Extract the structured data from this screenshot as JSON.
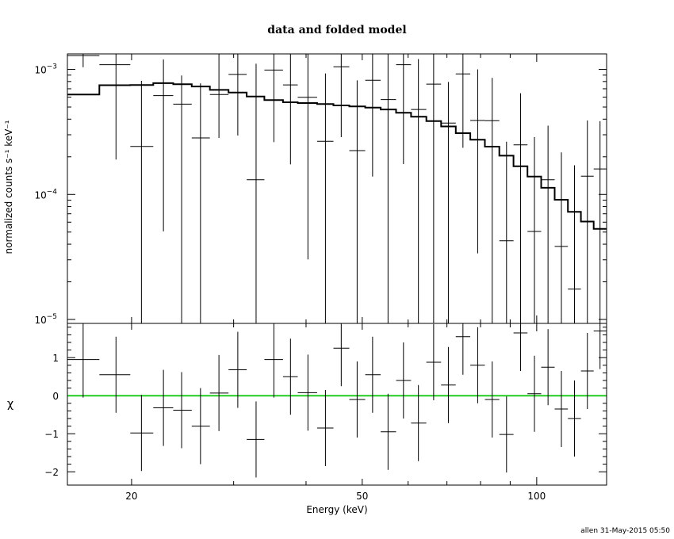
{
  "chart_data": {
    "title": "data and folded model",
    "footer": "allen 31-May-2015 05:50",
    "xlabel": "Energy (keV)",
    "x_scale": "log",
    "xlim": [
      15.5,
      132
    ],
    "x_ticks": [
      {
        "value": 20,
        "label": "20"
      },
      {
        "value": 50,
        "label": "50"
      },
      {
        "value": 100,
        "label": "100"
      }
    ],
    "panels": [
      {
        "type": "scatter",
        "ylabel": "normalized counts s⁻¹ keV⁻¹",
        "y_scale": "log",
        "ylim": [
          9.3e-06,
          0.00133
        ],
        "y_ticks": [
          {
            "value": 1e-05,
            "base": "10",
            "exp": "−5"
          },
          {
            "value": 0.0001,
            "base": "10",
            "exp": "−4"
          },
          {
            "value": 0.001,
            "base": "10",
            "exp": "−3"
          }
        ],
        "data": [
          {
            "x": 16.5,
            "xlo": 15.5,
            "xhi": 17.6,
            "y": 0.00129,
            "ylo": 0.00104,
            "yhi": 0.00133
          },
          {
            "x": 18.8,
            "xlo": 17.6,
            "xhi": 19.9,
            "y": 0.00109,
            "ylo": 0.00019,
            "yhi": 0.00133
          },
          {
            "x": 20.8,
            "xlo": 19.9,
            "xhi": 21.8,
            "y": 0.000242,
            "ylo": 9.3e-06,
            "yhi": 0.00081
          },
          {
            "x": 22.7,
            "xlo": 21.8,
            "xhi": 23.6,
            "y": 0.000617,
            "ylo": 5.07e-05,
            "yhi": 0.0012
          },
          {
            "x": 24.4,
            "xlo": 23.6,
            "xhi": 25.4,
            "y": 0.000527,
            "ylo": 9.3e-06,
            "yhi": 0.000894
          },
          {
            "x": 26.3,
            "xlo": 25.4,
            "xhi": 27.3,
            "y": 0.000283,
            "ylo": 9.3e-06,
            "yhi": 0.000773
          },
          {
            "x": 28.3,
            "xlo": 27.3,
            "xhi": 29.4,
            "y": 0.000629,
            "ylo": 0.000283,
            "yhi": 0.00133
          },
          {
            "x": 30.5,
            "xlo": 29.4,
            "xhi": 31.6,
            "y": 0.000911,
            "ylo": 0.000296,
            "yhi": 0.00133
          },
          {
            "x": 32.8,
            "xlo": 31.6,
            "xhi": 33.9,
            "y": 0.000131,
            "ylo": 9.3e-06,
            "yhi": 0.00111
          },
          {
            "x": 35.2,
            "xlo": 33.9,
            "xhi": 36.5,
            "y": 0.000987,
            "ylo": 0.000262,
            "yhi": 0.00133
          },
          {
            "x": 37.6,
            "xlo": 36.5,
            "xhi": 38.7,
            "y": 0.000751,
            "ylo": 0.000174,
            "yhi": 0.00133
          },
          {
            "x": 40.3,
            "xlo": 38.7,
            "xhi": 41.8,
            "y": 0.000598,
            "ylo": 3.02e-05,
            "yhi": 0.00133
          },
          {
            "x": 43.2,
            "xlo": 41.8,
            "xhi": 44.6,
            "y": 0.000266,
            "ylo": 9.3e-06,
            "yhi": 0.000929
          },
          {
            "x": 46.0,
            "xlo": 44.6,
            "xhi": 47.5,
            "y": 0.00105,
            "ylo": 0.000287,
            "yhi": 0.00133
          },
          {
            "x": 49.0,
            "xlo": 47.5,
            "xhi": 50.6,
            "y": 0.000224,
            "ylo": 9.3e-06,
            "yhi": 0.000817
          },
          {
            "x": 52.1,
            "xlo": 50.6,
            "xhi": 53.8,
            "y": 0.000818,
            "ylo": 0.000139,
            "yhi": 0.00133
          },
          {
            "x": 55.4,
            "xlo": 53.8,
            "xhi": 57.2,
            "y": 0.000574,
            "ylo": 9.3e-06,
            "yhi": 0.00133
          },
          {
            "x": 58.9,
            "xlo": 57.2,
            "xhi": 60.7,
            "y": 0.00109,
            "ylo": 0.000175,
            "yhi": 0.00133
          },
          {
            "x": 62.5,
            "xlo": 60.7,
            "xhi": 64.5,
            "y": 0.000478,
            "ylo": 9.3e-06,
            "yhi": 0.00121
          },
          {
            "x": 66.4,
            "xlo": 64.5,
            "xhi": 68.4,
            "y": 0.000762,
            "ylo": 9.3e-06,
            "yhi": 0.00133
          },
          {
            "x": 70.4,
            "xlo": 68.4,
            "xhi": 72.5,
            "y": 0.000372,
            "ylo": 9.3e-06,
            "yhi": 0.000793
          },
          {
            "x": 74.6,
            "xlo": 72.5,
            "xhi": 76.8,
            "y": 0.00092,
            "ylo": 0.000236,
            "yhi": 0.00133
          },
          {
            "x": 79.1,
            "xlo": 76.8,
            "xhi": 81.4,
            "y": 0.00039,
            "ylo": 3.38e-05,
            "yhi": 0.001
          },
          {
            "x": 83.8,
            "xlo": 81.4,
            "xhi": 86.2,
            "y": 0.000389,
            "ylo": 9.3e-06,
            "yhi": 0.000855
          },
          {
            "x": 88.7,
            "xlo": 86.2,
            "xhi": 91.2,
            "y": 4.26e-05,
            "ylo": 9.3e-06,
            "yhi": 0.000264
          },
          {
            "x": 93.8,
            "xlo": 91.2,
            "xhi": 96.4,
            "y": 0.000249,
            "ylo": 9.3e-06,
            "yhi": 0.000644
          },
          {
            "x": 99.1,
            "xlo": 96.4,
            "xhi": 101.8,
            "y": 5.06e-05,
            "ylo": 9.3e-06,
            "yhi": 0.000288
          },
          {
            "x": 104.6,
            "xlo": 101.8,
            "xhi": 107.4,
            "y": 0.000131,
            "ylo": 9.3e-06,
            "yhi": 0.000355
          },
          {
            "x": 110.3,
            "xlo": 107.4,
            "xhi": 113.2,
            "y": 3.84e-05,
            "ylo": 9.3e-06,
            "yhi": 0.000217
          },
          {
            "x": 116.2,
            "xlo": 113.2,
            "xhi": 119.2,
            "y": 1.75e-05,
            "ylo": 9.3e-06,
            "yhi": 0.000171
          },
          {
            "x": 122.3,
            "xlo": 119.2,
            "xhi": 125.4,
            "y": 0.00014,
            "ylo": 9.3e-06,
            "yhi": 0.00039
          },
          {
            "x": 128.6,
            "xlo": 125.4,
            "xhi": 132.0,
            "y": 0.00016,
            "ylo": 9.3e-06,
            "yhi": 0.000385
          }
        ],
        "model": {
          "name": "folded model",
          "edges": [
            15.5,
            17.6,
            19.9,
            21.8,
            23.6,
            25.4,
            27.3,
            29.4,
            31.6,
            33.9,
            36.5,
            38.7,
            41.8,
            44.6,
            47.5,
            50.6,
            53.8,
            57.2,
            60.7,
            64.5,
            68.4,
            72.5,
            76.8,
            81.4,
            86.2,
            91.2,
            96.4,
            101.8,
            107.4,
            113.2,
            119.2,
            125.4,
            132.0
          ],
          "values": [
            0.00063,
            0.000747,
            0.00075,
            0.000776,
            0.000762,
            0.00073,
            0.000686,
            0.000653,
            0.000607,
            0.000568,
            0.000546,
            0.000538,
            0.000528,
            0.000515,
            0.000505,
            0.000495,
            0.000478,
            0.00045,
            0.000418,
            0.000386,
            0.00035,
            0.000309,
            0.000274,
            0.000241,
            0.000204,
            0.000168,
            0.000139,
            0.000113,
            9.06e-05,
            7.25e-05,
            6.07e-05,
            5.3e-05
          ]
        }
      },
      {
        "type": "scatter",
        "ylabel": "χ",
        "y_scale": "linear",
        "ylim": [
          -2.35,
          1.9
        ],
        "y_ticks": [
          {
            "value": 1,
            "label": "1"
          },
          {
            "value": 0,
            "label": "0"
          },
          {
            "value": -1,
            "label": "−1"
          },
          {
            "value": -2,
            "label": "−2"
          }
        ],
        "zero_line_color": "#22cc22",
        "data": [
          {
            "x": 16.5,
            "xlo": 15.5,
            "xhi": 17.6,
            "y": 0.95,
            "ylo": -0.05,
            "yhi": 1.9
          },
          {
            "x": 18.8,
            "xlo": 17.6,
            "xhi": 19.9,
            "y": 0.55,
            "ylo": -0.45,
            "yhi": 1.55
          },
          {
            "x": 20.8,
            "xlo": 19.9,
            "xhi": 21.8,
            "y": -0.98,
            "ylo": -1.98,
            "yhi": 0.02
          },
          {
            "x": 22.7,
            "xlo": 21.8,
            "xhi": 23.6,
            "y": -0.32,
            "ylo": -1.32,
            "yhi": 0.68
          },
          {
            "x": 24.4,
            "xlo": 23.6,
            "xhi": 25.4,
            "y": -0.38,
            "ylo": -1.38,
            "yhi": 0.62
          },
          {
            "x": 26.3,
            "xlo": 25.4,
            "xhi": 27.3,
            "y": -0.8,
            "ylo": -1.8,
            "yhi": 0.2
          },
          {
            "x": 28.3,
            "xlo": 27.3,
            "xhi": 29.4,
            "y": 0.07,
            "ylo": -0.93,
            "yhi": 1.07
          },
          {
            "x": 30.5,
            "xlo": 29.4,
            "xhi": 31.6,
            "y": 0.68,
            "ylo": -0.32,
            "yhi": 1.68
          },
          {
            "x": 32.8,
            "xlo": 31.6,
            "xhi": 33.9,
            "y": -1.15,
            "ylo": -2.15,
            "yhi": -0.15
          },
          {
            "x": 35.2,
            "xlo": 33.9,
            "xhi": 36.5,
            "y": 0.95,
            "ylo": -0.05,
            "yhi": 1.9
          },
          {
            "x": 37.6,
            "xlo": 36.5,
            "xhi": 38.7,
            "y": 0.5,
            "ylo": -0.5,
            "yhi": 1.5
          },
          {
            "x": 40.3,
            "xlo": 38.7,
            "xhi": 41.8,
            "y": 0.08,
            "ylo": -0.92,
            "yhi": 1.08
          },
          {
            "x": 43.2,
            "xlo": 41.8,
            "xhi": 44.6,
            "y": -0.85,
            "ylo": -1.85,
            "yhi": 0.15
          },
          {
            "x": 46.0,
            "xlo": 44.6,
            "xhi": 47.5,
            "y": 1.25,
            "ylo": 0.25,
            "yhi": 1.9
          },
          {
            "x": 49.0,
            "xlo": 47.5,
            "xhi": 50.6,
            "y": -0.1,
            "ylo": -1.1,
            "yhi": 0.9
          },
          {
            "x": 52.1,
            "xlo": 50.6,
            "xhi": 53.8,
            "y": 0.55,
            "ylo": -0.45,
            "yhi": 1.55
          },
          {
            "x": 55.4,
            "xlo": 53.8,
            "xhi": 57.2,
            "y": -0.95,
            "ylo": -1.95,
            "yhi": 0.05
          },
          {
            "x": 58.9,
            "xlo": 57.2,
            "xhi": 60.7,
            "y": 0.4,
            "ylo": -0.6,
            "yhi": 1.4
          },
          {
            "x": 62.5,
            "xlo": 60.7,
            "xhi": 64.5,
            "y": -0.72,
            "ylo": -1.72,
            "yhi": 0.28
          },
          {
            "x": 66.4,
            "xlo": 64.5,
            "xhi": 68.4,
            "y": 0.88,
            "ylo": -0.12,
            "yhi": 1.88
          },
          {
            "x": 70.4,
            "xlo": 68.4,
            "xhi": 72.5,
            "y": 0.28,
            "ylo": -0.72,
            "yhi": 1.28
          },
          {
            "x": 74.6,
            "xlo": 72.5,
            "xhi": 76.8,
            "y": 1.55,
            "ylo": 0.55,
            "yhi": 1.9
          },
          {
            "x": 79.1,
            "xlo": 76.8,
            "xhi": 81.4,
            "y": 0.8,
            "ylo": -0.2,
            "yhi": 1.8
          },
          {
            "x": 83.8,
            "xlo": 81.4,
            "xhi": 86.2,
            "y": -0.1,
            "ylo": -1.1,
            "yhi": 0.9
          },
          {
            "x": 88.7,
            "xlo": 86.2,
            "xhi": 91.2,
            "y": -1.02,
            "ylo": -2.02,
            "yhi": -0.02
          },
          {
            "x": 93.8,
            "xlo": 91.2,
            "xhi": 96.4,
            "y": 1.65,
            "ylo": 0.65,
            "yhi": 1.9
          },
          {
            "x": 99.1,
            "xlo": 96.4,
            "xhi": 101.8,
            "y": 0.05,
            "ylo": -0.95,
            "yhi": 1.05
          },
          {
            "x": 104.6,
            "xlo": 101.8,
            "xhi": 107.4,
            "y": 0.75,
            "ylo": -0.25,
            "yhi": 1.75
          },
          {
            "x": 110.3,
            "xlo": 107.4,
            "xhi": 113.2,
            "y": -0.35,
            "ylo": -1.35,
            "yhi": 0.65
          },
          {
            "x": 116.2,
            "xlo": 113.2,
            "xhi": 119.2,
            "y": -0.6,
            "ylo": -1.6,
            "yhi": 0.4
          },
          {
            "x": 122.3,
            "xlo": 119.2,
            "xhi": 125.4,
            "y": 0.65,
            "ylo": -0.35,
            "yhi": 1.65
          },
          {
            "x": 128.6,
            "xlo": 125.4,
            "xhi": 132.0,
            "y": 1.7,
            "ylo": 0.7,
            "yhi": 1.9
          }
        ]
      }
    ]
  }
}
